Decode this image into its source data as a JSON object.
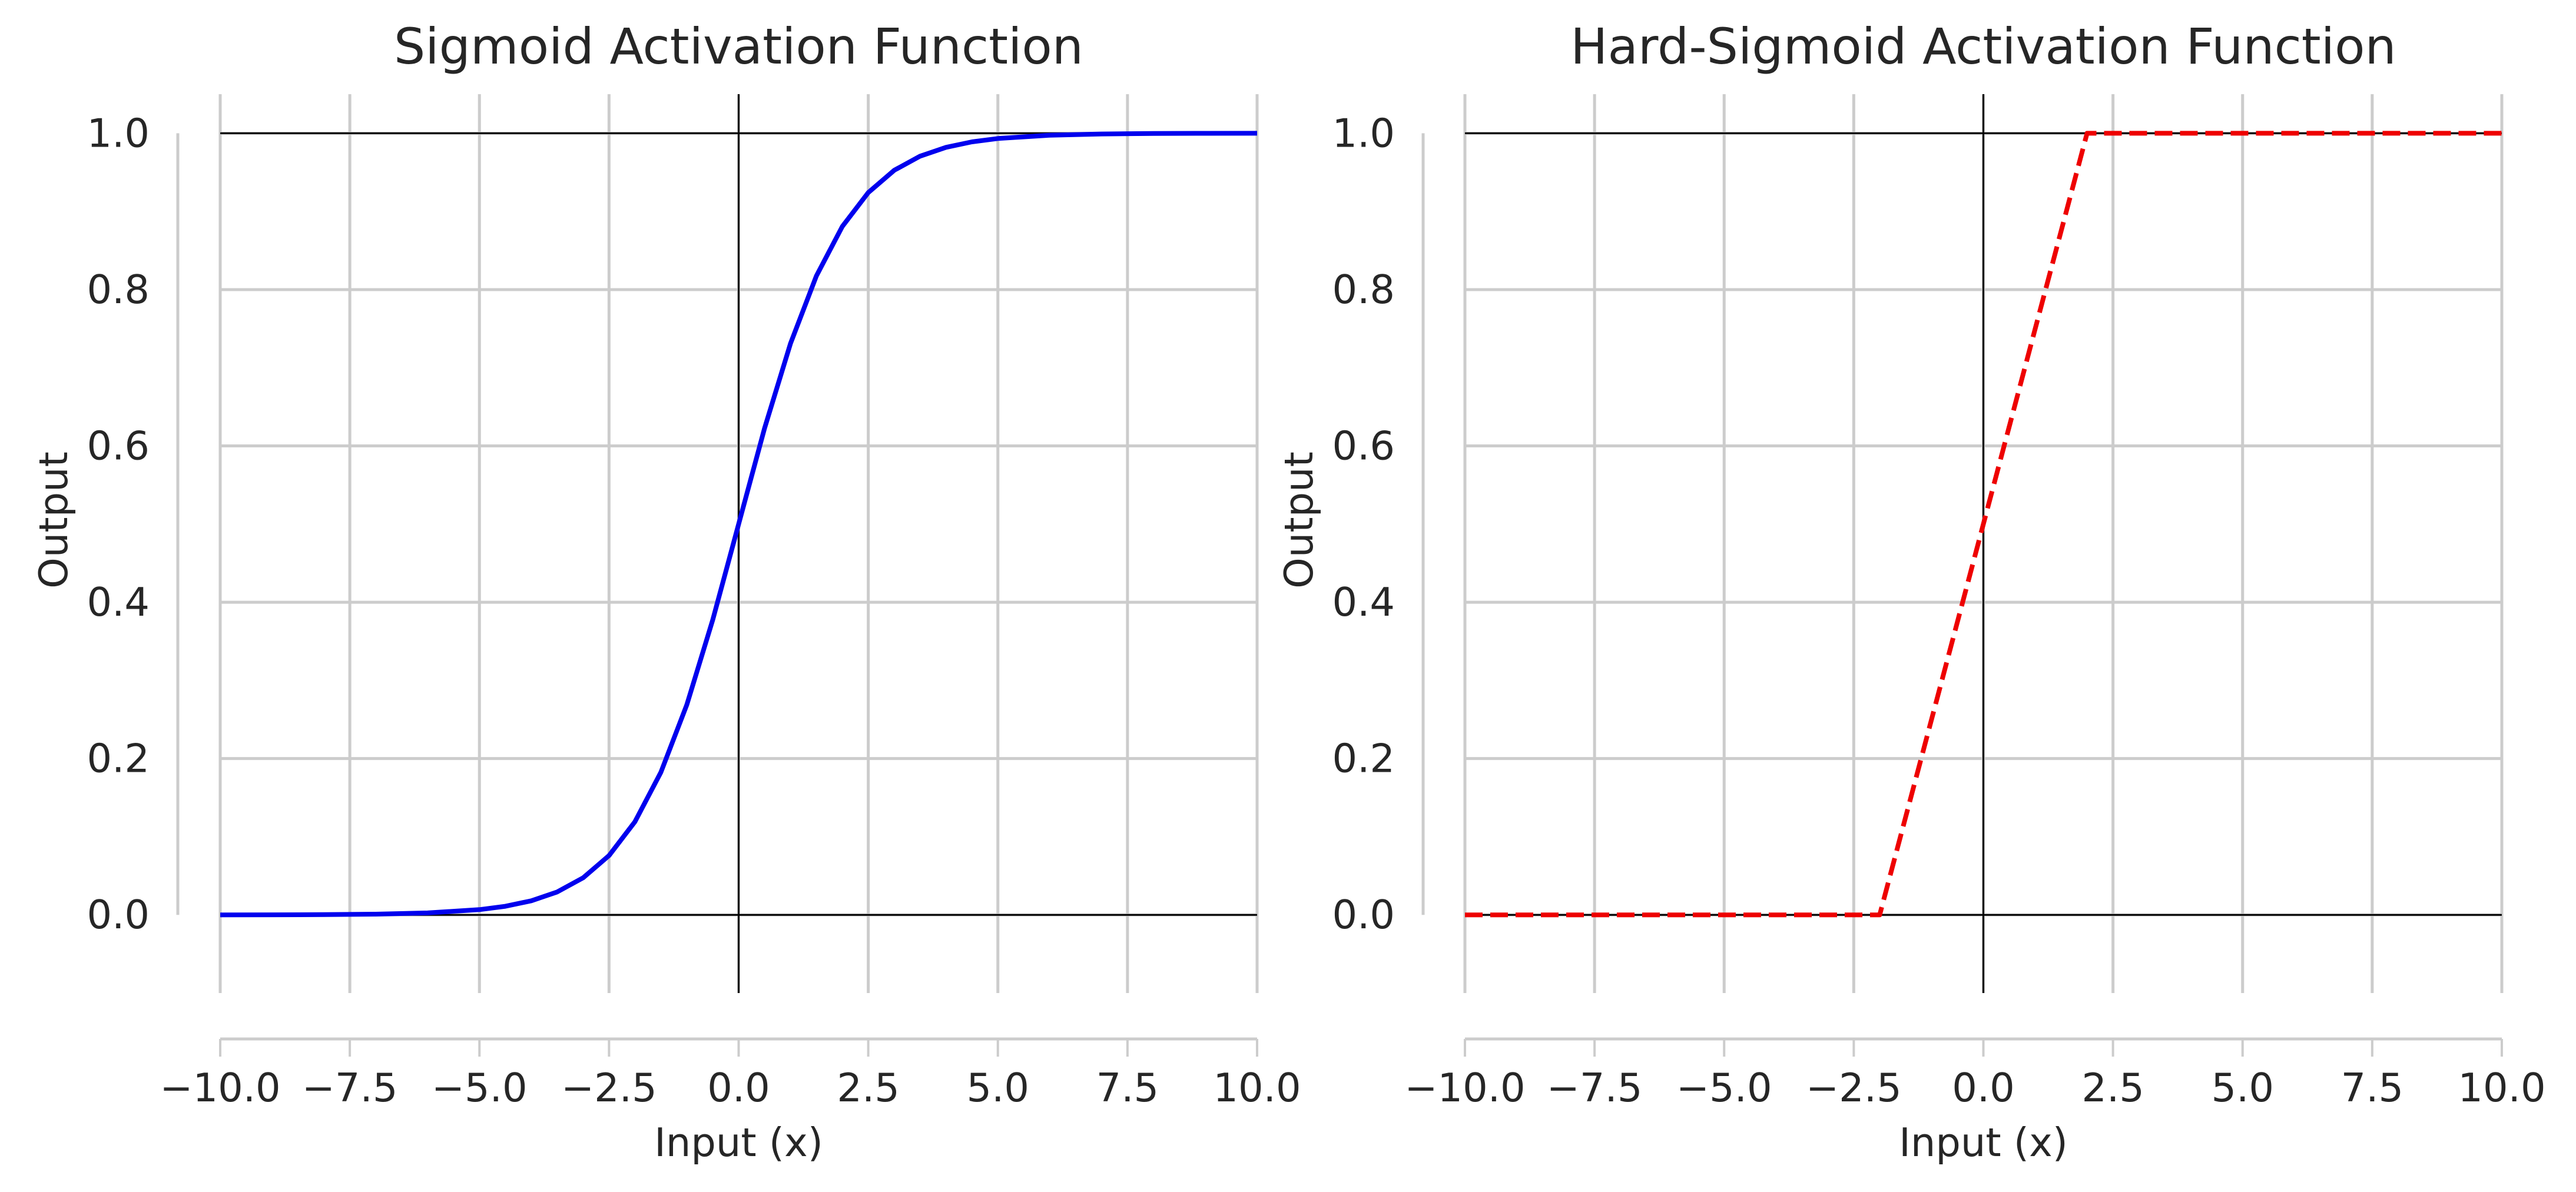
{
  "chart_data": [
    {
      "type": "line",
      "title": "Sigmoid Activation Function",
      "xlabel": "Input (x)",
      "ylabel": "Output",
      "xlim": [
        -10,
        10
      ],
      "ylim": [
        -0.1,
        1.05
      ],
      "xticks": [
        -10,
        -7.5,
        -5,
        -2.5,
        0,
        2.5,
        5,
        7.5,
        10
      ],
      "xtick_labels": [
        "−10.0",
        "−7.5",
        "−5.0",
        "−2.5",
        "0.0",
        "2.5",
        "5.0",
        "7.5",
        "10.0"
      ],
      "yticks": [
        0,
        0.2,
        0.4,
        0.6,
        0.8,
        1.0
      ],
      "ytick_labels": [
        "0.0",
        "0.2",
        "0.4",
        "0.6",
        "0.8",
        "1.0"
      ],
      "grid": true,
      "reference_lines": {
        "y": [
          0,
          1
        ],
        "x": [
          0
        ]
      },
      "series": [
        {
          "color": "#0000ee",
          "style": "solid",
          "x": [
            -10,
            -9,
            -8,
            -7,
            -6,
            -5,
            -4.5,
            -4,
            -3.5,
            -3,
            -2.5,
            -2,
            -1.5,
            -1,
            -0.5,
            0,
            0.5,
            1,
            1.5,
            2,
            2.5,
            3,
            3.5,
            4,
            4.5,
            5,
            6,
            7,
            8,
            9,
            10
          ],
          "y": [
            4.54e-05,
            0.000123,
            0.000335,
            0.000911,
            0.00247,
            0.00669,
            0.011,
            0.018,
            0.0293,
            0.0474,
            0.0759,
            0.1192,
            0.1824,
            0.2689,
            0.3775,
            0.5,
            0.6225,
            0.7311,
            0.8176,
            0.8808,
            0.9241,
            0.9526,
            0.9707,
            0.982,
            0.989,
            0.9933,
            0.9975,
            0.9991,
            0.9997,
            0.9999,
            1.0
          ]
        }
      ]
    },
    {
      "type": "line",
      "title": "Hard-Sigmoid Activation Function",
      "xlabel": "Input (x)",
      "ylabel": "Output",
      "xlim": [
        -10,
        10
      ],
      "ylim": [
        -0.1,
        1.05
      ],
      "xticks": [
        -10,
        -7.5,
        -5,
        -2.5,
        0,
        2.5,
        5,
        7.5,
        10
      ],
      "xtick_labels": [
        "−10.0",
        "−7.5",
        "−5.0",
        "−2.5",
        "0.0",
        "2.5",
        "5.0",
        "7.5",
        "10.0"
      ],
      "yticks": [
        0,
        0.2,
        0.4,
        0.6,
        0.8,
        1.0
      ],
      "ytick_labels": [
        "0.0",
        "0.2",
        "0.4",
        "0.6",
        "0.8",
        "1.0"
      ],
      "grid": true,
      "reference_lines": {
        "y": [
          0,
          1
        ],
        "x": [
          0
        ]
      },
      "series": [
        {
          "color": "#ee0000",
          "style": "dashed",
          "x": [
            -10,
            -2,
            2,
            10
          ],
          "y": [
            0,
            0,
            1,
            1
          ]
        }
      ]
    }
  ]
}
